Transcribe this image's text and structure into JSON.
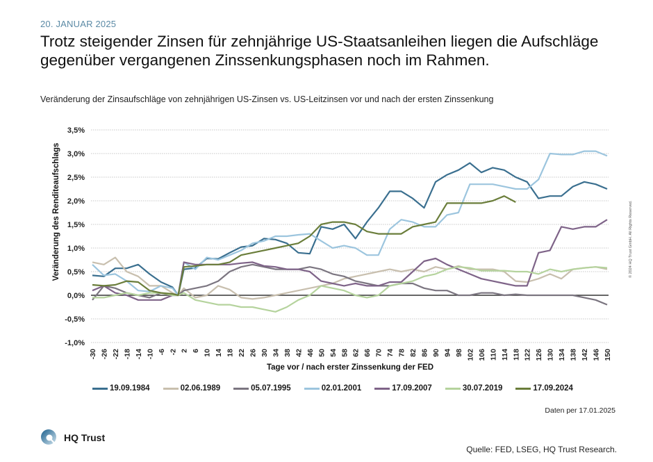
{
  "header": {
    "date": "20. JANUAR 2025",
    "headline": "Trotz steigender Zinsen für zehnjährige US-Staatsanleihen liegen die Aufschläge gegenüber vergangenen Zinssenkungsphasen noch im Rahmen.",
    "subtitle": "Veränderung der Zinsaufschläge von zehnjährigen US-Zinsen vs. US-Leitzinsen vor und nach der ersten Zinssenkung"
  },
  "footer": {
    "data_note": "Daten per 17.01.2025",
    "source": "Quelle: FED, LSEG, HQ Trust Research.",
    "logo_text": "HQ Trust",
    "logo_icon": "hq-trust-q-logo-icon",
    "copyright": "© 2024 HQ Trust GmbH. All Rights Reserved."
  },
  "chart_data": {
    "type": "line",
    "title": "Veränderung der Zinsaufschläge von zehnjährigen US-Zinsen vs. US-Leitzinsen vor und nach der ersten Zinssenkung",
    "xlabel": "Tage vor / nach erster Zinssenkung der FED",
    "ylabel": "Veränderung des Renditeaufschlags",
    "xlim": [
      -30,
      150
    ],
    "ylim": [
      -1.0,
      3.5
    ],
    "y_ticks": [
      -1.0,
      -0.5,
      0.0,
      0.5,
      1.0,
      1.5,
      2.0,
      2.5,
      3.0,
      3.5
    ],
    "y_tick_labels": [
      "-1,0%",
      "-0,5%",
      "0,0%",
      "0,5%",
      "1,0%",
      "1,5%",
      "2,0%",
      "2,5%",
      "3,0%",
      "3,5%"
    ],
    "x_ticks": [
      -30,
      -26,
      -22,
      -18,
      -14,
      -10,
      -6,
      -2,
      2,
      6,
      10,
      14,
      18,
      22,
      26,
      30,
      34,
      38,
      42,
      46,
      50,
      54,
      58,
      62,
      66,
      70,
      74,
      78,
      82,
      86,
      90,
      94,
      98,
      102,
      106,
      110,
      114,
      118,
      122,
      126,
      130,
      134,
      138,
      142,
      146,
      150
    ],
    "grid": "horizontal-dotted",
    "legend_position": "bottom",
    "x": [
      -30,
      -26,
      -22,
      -18,
      -14,
      -10,
      -6,
      -2,
      0,
      2,
      6,
      10,
      14,
      18,
      22,
      26,
      30,
      34,
      38,
      42,
      46,
      50,
      54,
      58,
      62,
      66,
      70,
      74,
      78,
      82,
      86,
      90,
      94,
      98,
      102,
      106,
      110,
      114,
      118,
      122,
      126,
      130,
      134,
      138,
      142,
      146,
      150
    ],
    "series": [
      {
        "name": "19.09.1984",
        "color": "#3a6f8f",
        "values": [
          0.42,
          0.4,
          0.57,
          0.57,
          0.65,
          0.45,
          0.28,
          0.17,
          0.0,
          0.55,
          0.58,
          0.78,
          0.77,
          0.9,
          1.02,
          1.05,
          1.2,
          1.18,
          1.1,
          0.9,
          0.88,
          1.45,
          1.4,
          1.5,
          1.2,
          1.55,
          1.85,
          2.2,
          2.2,
          2.05,
          1.85,
          2.4,
          2.55,
          2.65,
          2.8,
          2.6,
          2.7,
          2.65,
          2.5,
          2.4,
          2.05,
          2.1,
          2.1,
          2.3,
          2.4,
          2.35,
          2.25
        ]
      },
      {
        "name": "02.06.1989",
        "color": "#c8bfae",
        "values": [
          0.7,
          0.65,
          0.8,
          0.5,
          0.4,
          0.2,
          0.2,
          0.05,
          0.0,
          0.15,
          -0.05,
          0.0,
          0.2,
          0.12,
          -0.05,
          -0.08,
          -0.05,
          0.0,
          0.05,
          0.1,
          0.15,
          0.2,
          0.25,
          0.35,
          0.4,
          0.45,
          0.5,
          0.55,
          0.5,
          0.55,
          0.5,
          0.6,
          0.55,
          0.62,
          0.55,
          0.55,
          0.55,
          0.5,
          0.3,
          0.28,
          0.35,
          0.45,
          0.35,
          0.55,
          0.58,
          0.6,
          0.55
        ]
      },
      {
        "name": "05.07.1995",
        "color": "#7b7580",
        "values": [
          -0.1,
          0.2,
          0.15,
          0.05,
          0.0,
          -0.05,
          0.05,
          0.0,
          0.0,
          0.1,
          0.15,
          0.2,
          0.3,
          0.5,
          0.6,
          0.65,
          0.6,
          0.55,
          0.55,
          0.55,
          0.6,
          0.55,
          0.45,
          0.4,
          0.3,
          0.25,
          0.2,
          0.2,
          0.25,
          0.25,
          0.15,
          0.1,
          0.1,
          0.0,
          0.0,
          0.05,
          0.05,
          0.0,
          0.02,
          0.0,
          0.0,
          0.0,
          0.0,
          0.0,
          -0.05,
          -0.1,
          -0.2
        ]
      },
      {
        "name": "02.01.2001",
        "color": "#9cc5de",
        "values": [
          0.65,
          0.42,
          0.45,
          0.3,
          0.1,
          0.08,
          0.2,
          0.15,
          0.0,
          0.7,
          0.55,
          0.8,
          0.75,
          0.85,
          0.95,
          1.1,
          1.15,
          1.25,
          1.25,
          1.28,
          1.3,
          1.15,
          1.0,
          1.05,
          1.0,
          0.85,
          0.85,
          1.4,
          1.6,
          1.55,
          1.45,
          1.45,
          1.7,
          1.75,
          2.35,
          2.35,
          2.35,
          2.3,
          2.25,
          2.25,
          2.45,
          3.0,
          2.98,
          2.98,
          3.05,
          3.05,
          2.95
        ]
      },
      {
        "name": "17.09.2007",
        "color": "#7e6388",
        "values": [
          0.1,
          0.2,
          0.05,
          0.0,
          -0.1,
          -0.1,
          -0.1,
          0.0,
          0.0,
          0.7,
          0.65,
          0.65,
          0.65,
          0.65,
          0.68,
          0.7,
          0.62,
          0.6,
          0.55,
          0.55,
          0.5,
          0.3,
          0.25,
          0.2,
          0.25,
          0.2,
          0.2,
          0.28,
          0.28,
          0.5,
          0.72,
          0.78,
          0.65,
          0.55,
          0.45,
          0.35,
          0.3,
          0.25,
          0.2,
          0.2,
          0.9,
          0.95,
          1.45,
          1.4,
          1.45,
          1.45,
          1.6
        ]
      },
      {
        "name": "30.07.2019",
        "color": "#b5d39d",
        "values": [
          -0.05,
          -0.05,
          0.0,
          0.05,
          0.0,
          0.05,
          0.05,
          0.0,
          0.0,
          0.05,
          -0.1,
          -0.15,
          -0.2,
          -0.2,
          -0.25,
          -0.25,
          -0.3,
          -0.35,
          -0.25,
          -0.1,
          0.0,
          0.2,
          0.15,
          0.1,
          0.0,
          -0.05,
          0.0,
          0.2,
          0.25,
          0.3,
          0.4,
          0.45,
          0.55,
          0.6,
          0.58,
          0.52,
          0.52,
          0.52,
          0.5,
          0.5,
          0.45,
          0.55,
          0.5,
          0.55,
          0.58,
          0.6,
          0.58
        ]
      },
      {
        "name": "17.09.2024",
        "color": "#6a7d3a",
        "values": [
          0.22,
          0.2,
          0.22,
          0.3,
          0.28,
          0.1,
          0.05,
          0.03,
          0.0,
          0.6,
          0.62,
          0.65,
          0.65,
          0.7,
          0.85,
          0.9,
          0.95,
          1.0,
          1.05,
          1.1,
          1.25,
          1.5,
          1.55,
          1.55,
          1.5,
          1.35,
          1.3,
          1.3,
          1.3,
          1.45,
          1.5,
          1.55,
          1.95,
          1.95,
          1.95,
          1.95,
          2.0,
          2.1,
          1.97,
          null,
          null,
          null,
          null,
          null,
          null,
          null,
          null
        ]
      }
    ]
  }
}
